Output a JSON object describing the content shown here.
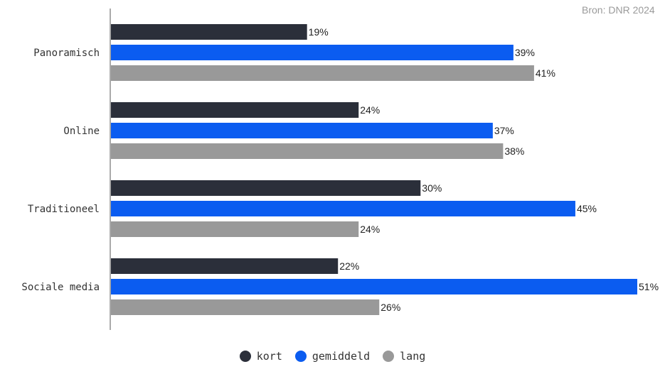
{
  "source": "Bron: DNR 2024",
  "chart_data": {
    "type": "bar",
    "orientation": "horizontal",
    "categories": [
      "Panoramisch",
      "Online",
      "Traditioneel",
      "Sociale media"
    ],
    "series": [
      {
        "name": "kort",
        "color": "#2b2f3a",
        "values": [
          19,
          24,
          30,
          22
        ]
      },
      {
        "name": "gemiddeld",
        "color": "#0b5cf0",
        "values": [
          39,
          37,
          45,
          51
        ]
      },
      {
        "name": "lang",
        "color": "#999999",
        "values": [
          41,
          38,
          24,
          26
        ]
      }
    ],
    "value_suffix": "%",
    "xlim": [
      0,
      51
    ],
    "grid": false,
    "legend_position": "bottom-center"
  }
}
